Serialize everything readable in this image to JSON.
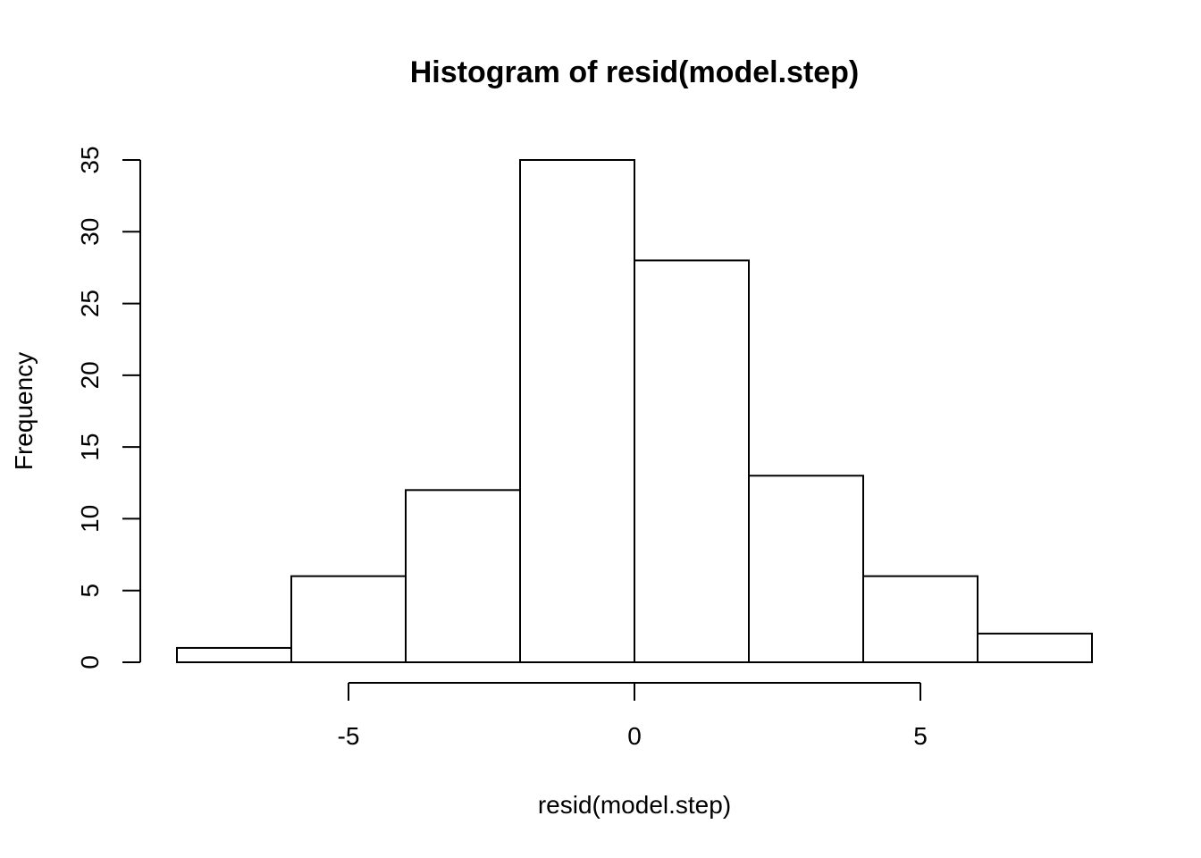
{
  "chart_data": {
    "type": "bar",
    "subtype": "histogram",
    "title": "Histogram of resid(model.step)",
    "xlabel": "resid(model.step)",
    "ylabel": "Frequency",
    "bins": [
      {
        "from": -8,
        "to": -6,
        "count": 1
      },
      {
        "from": -6,
        "to": -4,
        "count": 6
      },
      {
        "from": -4,
        "to": -2,
        "count": 12
      },
      {
        "from": -2,
        "to": 0,
        "count": 35
      },
      {
        "from": 0,
        "to": 2,
        "count": 28
      },
      {
        "from": 2,
        "to": 4,
        "count": 13
      },
      {
        "from": 4,
        "to": 6,
        "count": 6
      },
      {
        "from": 6,
        "to": 8,
        "count": 2
      }
    ],
    "x_ticks": [
      "-5",
      "0",
      "5"
    ],
    "y_ticks": [
      "0",
      "5",
      "10",
      "15",
      "20",
      "25",
      "30",
      "35"
    ],
    "xlim": [
      -8,
      8
    ],
    "ylim": [
      0,
      35
    ],
    "grid": false,
    "bar_fill": "#ffffff",
    "bar_stroke": "#000000"
  }
}
